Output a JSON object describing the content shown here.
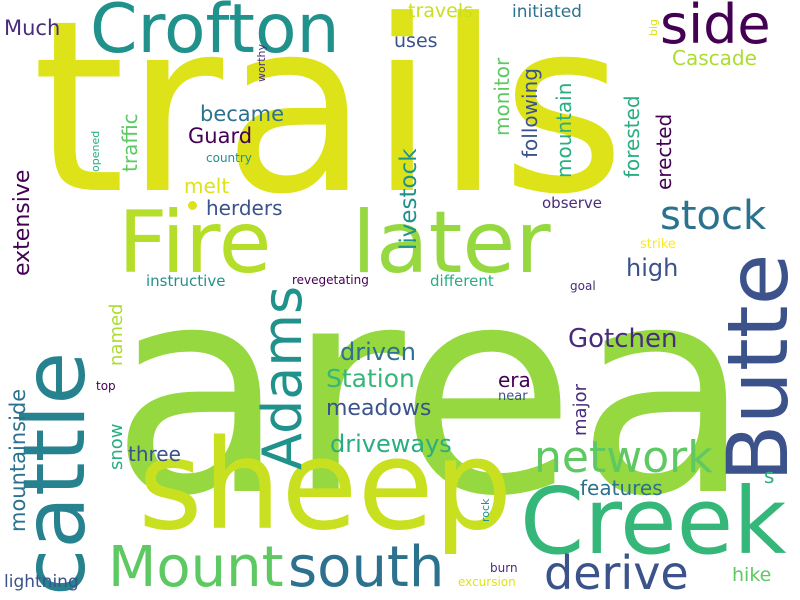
{
  "words": {
    "area": "area",
    "trails": "trails",
    "sheep": "sheep",
    "creek": "Creek",
    "cattle": "cattle",
    "fire": "Fire",
    "later": "later",
    "butte": "Butte",
    "crofton": "Crofton",
    "mount": "Mount",
    "south": "south",
    "adams": "Adams",
    "side": "side",
    "derive": "derive",
    "network": "network",
    "stock": "stock",
    "gotchen": "Gotchen",
    "station": "Station",
    "livestock": "livestock",
    "driveways": "driveways",
    "meadows": "meadows",
    "driven": "driven",
    "high": "high",
    "extensive": "extensive",
    "mountainside": "mountainside",
    "features": "features",
    "three": "three",
    "mountain": "mountain",
    "forested": "forested",
    "erected": "erected",
    "following": "following",
    "monitor": "monitor",
    "cascade": "Cascade",
    "became": "became",
    "guard": "Guard",
    "traffic": "traffic",
    "melt": "melt",
    "herders": "herders",
    "uses": "uses",
    "travels": "travels",
    "initiated": "initiated",
    "much": "Much",
    "era": "era",
    "major": "major",
    "named": "named",
    "snow": "snow",
    "hike": "hike",
    "lightning": "lightning",
    "observe": "observe",
    "instructive": "instructive",
    "different": "different",
    "revegetating": "revegetating",
    "strike": "strike",
    "goal": "goal",
    "country": "country",
    "opened": "opened",
    "worthy": "worthy",
    "big": "big",
    "top": "top",
    "near": "near",
    "rock": "rock",
    "burn": "burn",
    "excursion": "excursion",
    "s": "s"
  },
  "colors": {
    "background": "#ffffff",
    "dark_purple": "#440154",
    "indigo": "#472d7b",
    "slate_blue": "#3b528b",
    "steel_blue": "#2c728e",
    "teal": "#21918c",
    "sea_green": "#28ae80",
    "green": "#5ec962",
    "lime": "#addc30",
    "yellow_green": "#95d840",
    "yellow": "#dde318"
  }
}
